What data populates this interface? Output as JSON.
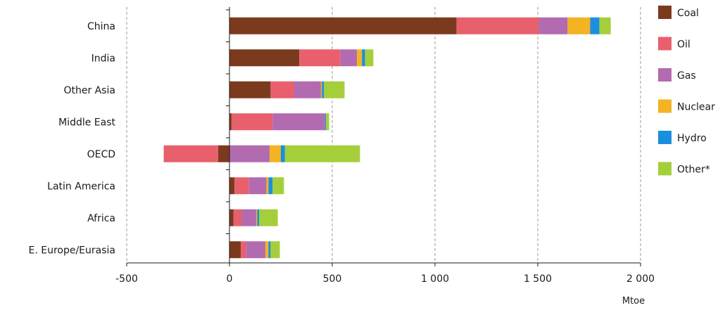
{
  "chart_data": {
    "type": "bar",
    "orientation": "horizontal",
    "stacked": true,
    "categories": [
      "China",
      "India",
      "Other Asia",
      "Middle East",
      "OECD",
      "Latin America",
      "Africa",
      "E. Europe/Eurasia"
    ],
    "series": [
      {
        "name": "Coal",
        "color": "#7b3a1e",
        "values": [
          1105,
          340,
          200,
          10,
          -55,
          25,
          20,
          55
        ]
      },
      {
        "name": "Oil",
        "color": "#e8606c",
        "values": [
          400,
          200,
          115,
          200,
          -265,
          70,
          40,
          25
        ]
      },
      {
        "name": "Gas",
        "color": "#b26bb0",
        "values": [
          140,
          80,
          130,
          255,
          195,
          85,
          70,
          95
        ]
      },
      {
        "name": "Nuclear",
        "color": "#f3b322",
        "values": [
          110,
          25,
          5,
          0,
          55,
          10,
          5,
          15
        ]
      },
      {
        "name": "Hydro",
        "color": "#1a8fdf",
        "values": [
          45,
          15,
          10,
          5,
          20,
          20,
          10,
          10
        ]
      },
      {
        "name": "Other*",
        "color": "#a5cf3a",
        "values": [
          55,
          40,
          100,
          15,
          365,
          55,
          90,
          45
        ]
      }
    ],
    "xlim": [
      -500,
      2000
    ],
    "xticks": [
      -500,
      0,
      500,
      1000,
      1500,
      2000
    ],
    "xtick_labels": [
      "-500",
      "0",
      "500",
      "1 000",
      "1 500",
      "2 000"
    ],
    "xlabel": "Mtoe",
    "title": "",
    "ylabel": "",
    "grid": "vertical dashed",
    "legend_position": "right"
  }
}
